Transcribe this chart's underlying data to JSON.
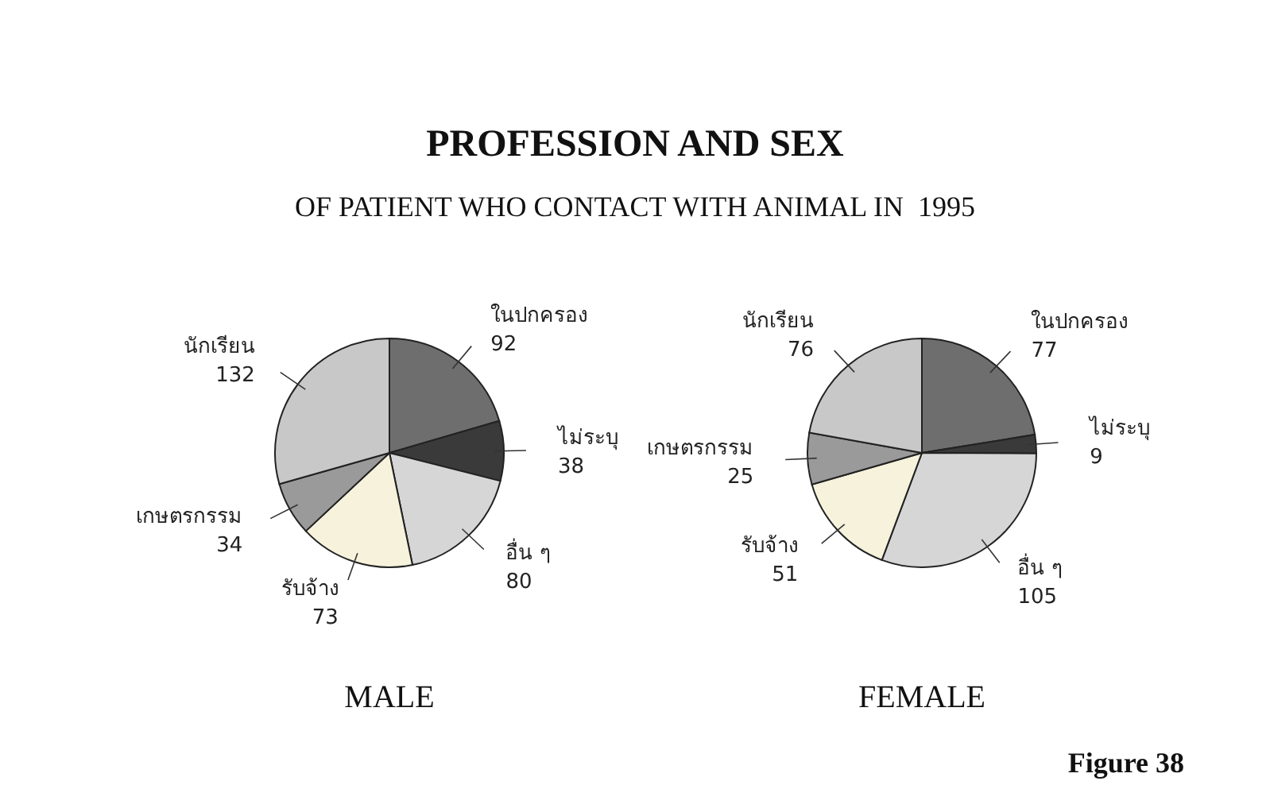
{
  "chart_data": [
    {
      "type": "pie",
      "title": "PROFESSION AND SEX",
      "subtitle": "OF PATIENT WHO CONTACT WITH ANIMAL IN  1995",
      "xlabel": "MALE",
      "categories": [
        "ในปกครอง",
        "ไม่ระบุ",
        "อื่น ๆ",
        "รับจ้าง",
        "เกษตรกรรม",
        "นักเรียน"
      ],
      "values": [
        92,
        38,
        80,
        73,
        34,
        132
      ],
      "colors": [
        "#6e6e6e",
        "#3a3a3a",
        "#d6d6d6",
        "#f6f2dc",
        "#9a9a9a",
        "#c8c8c8"
      ],
      "data_labels": true
    },
    {
      "type": "pie",
      "xlabel": "FEMALE",
      "annotations": [
        "Figure 38"
      ],
      "categories": [
        "ในปกครอง",
        "ไม่ระบุ",
        "อื่น ๆ",
        "รับจ้าง",
        "เกษตรกรรม",
        "นักเรียน"
      ],
      "values": [
        77,
        9,
        105,
        51,
        25,
        76
      ],
      "colors": [
        "#6e6e6e",
        "#3a3a3a",
        "#d6d6d6",
        "#f6f2dc",
        "#9a9a9a",
        "#c8c8c8"
      ],
      "data_labels": true
    }
  ]
}
